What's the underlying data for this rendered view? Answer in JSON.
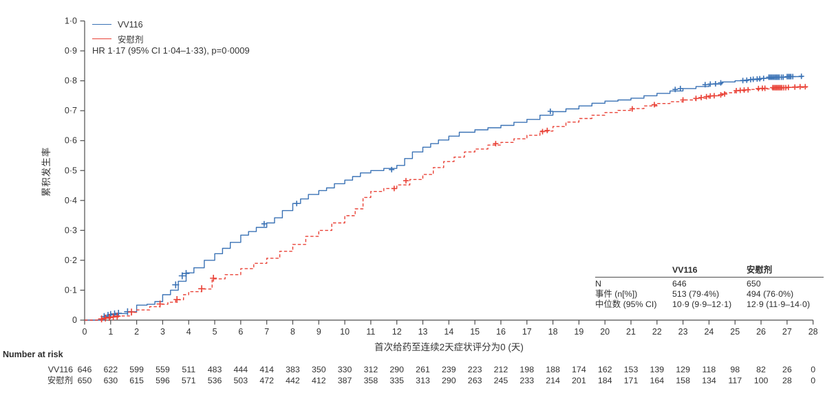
{
  "chart": {
    "legend": [
      {
        "label": "VV116",
        "color": "#3a72b5",
        "style": "solid"
      },
      {
        "label": "安慰剂",
        "color": "#e94136",
        "style": "dashed"
      }
    ],
    "annotation": "HR 1·17 (95% CI 1·04–1·33), p=0·0009",
    "ylabel": "累积发生率",
    "xlabel": "首次给药至连续2天症状评分为0 (天)"
  },
  "chart_data": {
    "type": "line",
    "subtype": "kaplan-meier-cumulative-incidence-step",
    "title": "",
    "xlabel": "首次给药至连续2天症状评分为0 (天)",
    "ylabel": "累积发生率",
    "xlim": [
      0,
      28
    ],
    "ylim": [
      0,
      1.0
    ],
    "x_ticks": [
      0,
      1,
      2,
      3,
      4,
      5,
      6,
      7,
      8,
      9,
      10,
      11,
      12,
      13,
      14,
      15,
      16,
      17,
      18,
      19,
      20,
      21,
      22,
      23,
      24,
      25,
      26,
      27,
      28
    ],
    "y_tick_labels": [
      "0",
      "0·1",
      "0·2",
      "0·3",
      "0·4",
      "0·5",
      "0·6",
      "0·7",
      "0·8",
      "0·9",
      "1·0"
    ],
    "annotation": "HR 1·17 (95% CI 1·04–1·33), p=0·0009",
    "legend_position": "top-left",
    "grid": false,
    "series": [
      {
        "name": "VV116",
        "color": "#3a72b5",
        "line_style": "solid",
        "points": [
          [
            0,
            0
          ],
          [
            0.6,
            0
          ],
          [
            0.75,
            0.01
          ],
          [
            1,
            0.018
          ],
          [
            1.3,
            0.022
          ],
          [
            1.65,
            0.028
          ],
          [
            2,
            0.05
          ],
          [
            2.4,
            0.053
          ],
          [
            2.7,
            0.062
          ],
          [
            3,
            0.085
          ],
          [
            3.3,
            0.1
          ],
          [
            3.6,
            0.13
          ],
          [
            3.9,
            0.158
          ],
          [
            4.2,
            0.175
          ],
          [
            4.6,
            0.2
          ],
          [
            5,
            0.222
          ],
          [
            5.3,
            0.24
          ],
          [
            5.6,
            0.26
          ],
          [
            6,
            0.284
          ],
          [
            6.3,
            0.296
          ],
          [
            6.6,
            0.31
          ],
          [
            7,
            0.325
          ],
          [
            7.3,
            0.342
          ],
          [
            7.6,
            0.366
          ],
          [
            8,
            0.39
          ],
          [
            8.3,
            0.405
          ],
          [
            8.6,
            0.42
          ],
          [
            9,
            0.433
          ],
          [
            9.3,
            0.442
          ],
          [
            9.6,
            0.456
          ],
          [
            10,
            0.468
          ],
          [
            10.3,
            0.48
          ],
          [
            10.6,
            0.492
          ],
          [
            11,
            0.5
          ],
          [
            11.5,
            0.507
          ],
          [
            12,
            0.517
          ],
          [
            12.3,
            0.54
          ],
          [
            12.6,
            0.562
          ],
          [
            13,
            0.578
          ],
          [
            13.3,
            0.59
          ],
          [
            13.6,
            0.602
          ],
          [
            14,
            0.615
          ],
          [
            14.4,
            0.628
          ],
          [
            15,
            0.636
          ],
          [
            15.5,
            0.643
          ],
          [
            16,
            0.651
          ],
          [
            16.5,
            0.661
          ],
          [
            17,
            0.671
          ],
          [
            17.5,
            0.685
          ],
          [
            18,
            0.697
          ],
          [
            18.5,
            0.706
          ],
          [
            19,
            0.716
          ],
          [
            19.5,
            0.725
          ],
          [
            20,
            0.732
          ],
          [
            20.5,
            0.736
          ],
          [
            21,
            0.742
          ],
          [
            21.5,
            0.75
          ],
          [
            22,
            0.758
          ],
          [
            22.5,
            0.766
          ],
          [
            23,
            0.774
          ],
          [
            23.5,
            0.781
          ],
          [
            24,
            0.789
          ],
          [
            24.5,
            0.796
          ],
          [
            25,
            0.8
          ],
          [
            25.5,
            0.804
          ],
          [
            26,
            0.808
          ],
          [
            26.5,
            0.812
          ],
          [
            27,
            0.814
          ],
          [
            27.6,
            0.815
          ]
        ],
        "censors": [
          [
            0.75,
            0.012
          ],
          [
            0.9,
            0.016
          ],
          [
            1.0,
            0.019
          ],
          [
            1.15,
            0.021
          ],
          [
            1.3,
            0.023
          ],
          [
            1.65,
            0.028
          ],
          [
            3.5,
            0.118
          ],
          [
            3.75,
            0.148
          ],
          [
            3.9,
            0.156
          ],
          [
            6.9,
            0.322
          ],
          [
            8.15,
            0.39
          ],
          [
            11.8,
            0.503
          ],
          [
            17.9,
            0.698
          ],
          [
            22.7,
            0.771
          ],
          [
            22.9,
            0.774
          ],
          [
            23.85,
            0.787
          ],
          [
            24.05,
            0.789
          ],
          [
            24.25,
            0.79
          ],
          [
            24.45,
            0.793
          ],
          [
            25.3,
            0.801
          ],
          [
            25.45,
            0.802
          ],
          [
            25.6,
            0.804
          ],
          [
            25.7,
            0.805
          ],
          [
            25.85,
            0.806
          ],
          [
            25.95,
            0.807
          ],
          [
            26.1,
            0.808
          ],
          [
            26.3,
            0.812
          ],
          [
            26.35,
            0.812
          ],
          [
            26.4,
            0.812
          ],
          [
            26.45,
            0.812
          ],
          [
            26.5,
            0.812
          ],
          [
            26.55,
            0.812
          ],
          [
            26.6,
            0.812
          ],
          [
            26.65,
            0.812
          ],
          [
            26.7,
            0.812
          ],
          [
            26.78,
            0.812
          ],
          [
            26.85,
            0.812
          ],
          [
            27.0,
            0.814
          ],
          [
            27.05,
            0.814
          ],
          [
            27.1,
            0.814
          ],
          [
            27.15,
            0.814
          ],
          [
            27.22,
            0.814
          ],
          [
            27.55,
            0.815
          ]
        ]
      },
      {
        "name": "安慰剂",
        "color": "#e94136",
        "line_style": "dashed",
        "points": [
          [
            0,
            0
          ],
          [
            0.6,
            0
          ],
          [
            0.8,
            0.005
          ],
          [
            1,
            0.01
          ],
          [
            1.3,
            0.014
          ],
          [
            1.8,
            0.026
          ],
          [
            2,
            0.034
          ],
          [
            2.5,
            0.045
          ],
          [
            2.9,
            0.053
          ],
          [
            3.2,
            0.06
          ],
          [
            3.5,
            0.068
          ],
          [
            3.8,
            0.085
          ],
          [
            4,
            0.095
          ],
          [
            4.5,
            0.104
          ],
          [
            4.9,
            0.138
          ],
          [
            5.4,
            0.152
          ],
          [
            6,
            0.172
          ],
          [
            6.5,
            0.19
          ],
          [
            7,
            0.207
          ],
          [
            7.5,
            0.23
          ],
          [
            8,
            0.253
          ],
          [
            8.5,
            0.28
          ],
          [
            9,
            0.3
          ],
          [
            9.5,
            0.325
          ],
          [
            10,
            0.349
          ],
          [
            10.4,
            0.372
          ],
          [
            10.7,
            0.41
          ],
          [
            11,
            0.43
          ],
          [
            11.5,
            0.44
          ],
          [
            12,
            0.452
          ],
          [
            12.5,
            0.47
          ],
          [
            13,
            0.487
          ],
          [
            13.4,
            0.51
          ],
          [
            13.8,
            0.53
          ],
          [
            14.2,
            0.545
          ],
          [
            14.6,
            0.562
          ],
          [
            15,
            0.572
          ],
          [
            15.5,
            0.585
          ],
          [
            16,
            0.594
          ],
          [
            16.5,
            0.606
          ],
          [
            17,
            0.618
          ],
          [
            17.5,
            0.632
          ],
          [
            18,
            0.647
          ],
          [
            18.5,
            0.662
          ],
          [
            19,
            0.674
          ],
          [
            19.5,
            0.685
          ],
          [
            20,
            0.694
          ],
          [
            20.5,
            0.701
          ],
          [
            21,
            0.707
          ],
          [
            21.5,
            0.716
          ],
          [
            22,
            0.724
          ],
          [
            22.5,
            0.73
          ],
          [
            23,
            0.736
          ],
          [
            23.5,
            0.742
          ],
          [
            24,
            0.75
          ],
          [
            24.5,
            0.76
          ],
          [
            25,
            0.767
          ],
          [
            25.5,
            0.771
          ],
          [
            26,
            0.773
          ],
          [
            26.5,
            0.776
          ],
          [
            27,
            0.778
          ],
          [
            27.75,
            0.78
          ]
        ],
        "censors": [
          [
            0.65,
            0.004
          ],
          [
            0.8,
            0.007
          ],
          [
            0.95,
            0.009
          ],
          [
            1.1,
            0.011
          ],
          [
            1.25,
            0.013
          ],
          [
            1.8,
            0.027
          ],
          [
            2.9,
            0.054
          ],
          [
            3.55,
            0.069
          ],
          [
            4.5,
            0.105
          ],
          [
            4.95,
            0.14
          ],
          [
            11.9,
            0.44
          ],
          [
            12.35,
            0.466
          ],
          [
            15.8,
            0.59
          ],
          [
            17.6,
            0.63
          ],
          [
            17.78,
            0.634
          ],
          [
            21.05,
            0.706
          ],
          [
            21.9,
            0.72
          ],
          [
            23.0,
            0.736
          ],
          [
            23.5,
            0.741
          ],
          [
            23.7,
            0.744
          ],
          [
            23.9,
            0.747
          ],
          [
            24.05,
            0.749
          ],
          [
            24.2,
            0.75
          ],
          [
            24.45,
            0.753
          ],
          [
            24.6,
            0.756
          ],
          [
            25.05,
            0.767
          ],
          [
            25.2,
            0.768
          ],
          [
            25.35,
            0.769
          ],
          [
            25.5,
            0.77
          ],
          [
            25.9,
            0.774
          ],
          [
            26.05,
            0.775
          ],
          [
            26.15,
            0.775
          ],
          [
            26.45,
            0.777
          ],
          [
            26.5,
            0.777
          ],
          [
            26.55,
            0.777
          ],
          [
            26.6,
            0.777
          ],
          [
            26.65,
            0.777
          ],
          [
            26.7,
            0.777
          ],
          [
            26.75,
            0.777
          ],
          [
            26.8,
            0.777
          ],
          [
            26.87,
            0.777
          ],
          [
            26.95,
            0.777
          ],
          [
            27.05,
            0.778
          ],
          [
            27.3,
            0.779
          ],
          [
            27.5,
            0.78
          ],
          [
            27.7,
            0.78
          ]
        ]
      }
    ]
  },
  "stats_table": {
    "headers": [
      "",
      "VV116",
      "安慰剂"
    ],
    "rows": [
      [
        "N",
        "646",
        "650"
      ],
      [
        "事件 (n[%])",
        "513 (79·4%)",
        "494 (76·0%)"
      ],
      [
        "中位数 (95% CI)",
        "10·9 (9·9–12·1)",
        "12·9 (11·9–14·0)"
      ]
    ]
  },
  "number_at_risk": {
    "title": "Number at risk",
    "rows": [
      {
        "label": "VV116",
        "values": [
          646,
          622,
          599,
          559,
          511,
          483,
          444,
          414,
          383,
          350,
          330,
          312,
          290,
          261,
          239,
          223,
          212,
          198,
          188,
          174,
          162,
          153,
          139,
          129,
          118,
          98,
          82,
          26,
          0
        ]
      },
      {
        "label": "安慰剂",
        "values": [
          650,
          630,
          615,
          596,
          571,
          536,
          503,
          472,
          442,
          412,
          387,
          358,
          335,
          313,
          290,
          263,
          245,
          233,
          214,
          201,
          184,
          171,
          164,
          158,
          134,
          117,
          100,
          28,
          0
        ]
      }
    ]
  }
}
